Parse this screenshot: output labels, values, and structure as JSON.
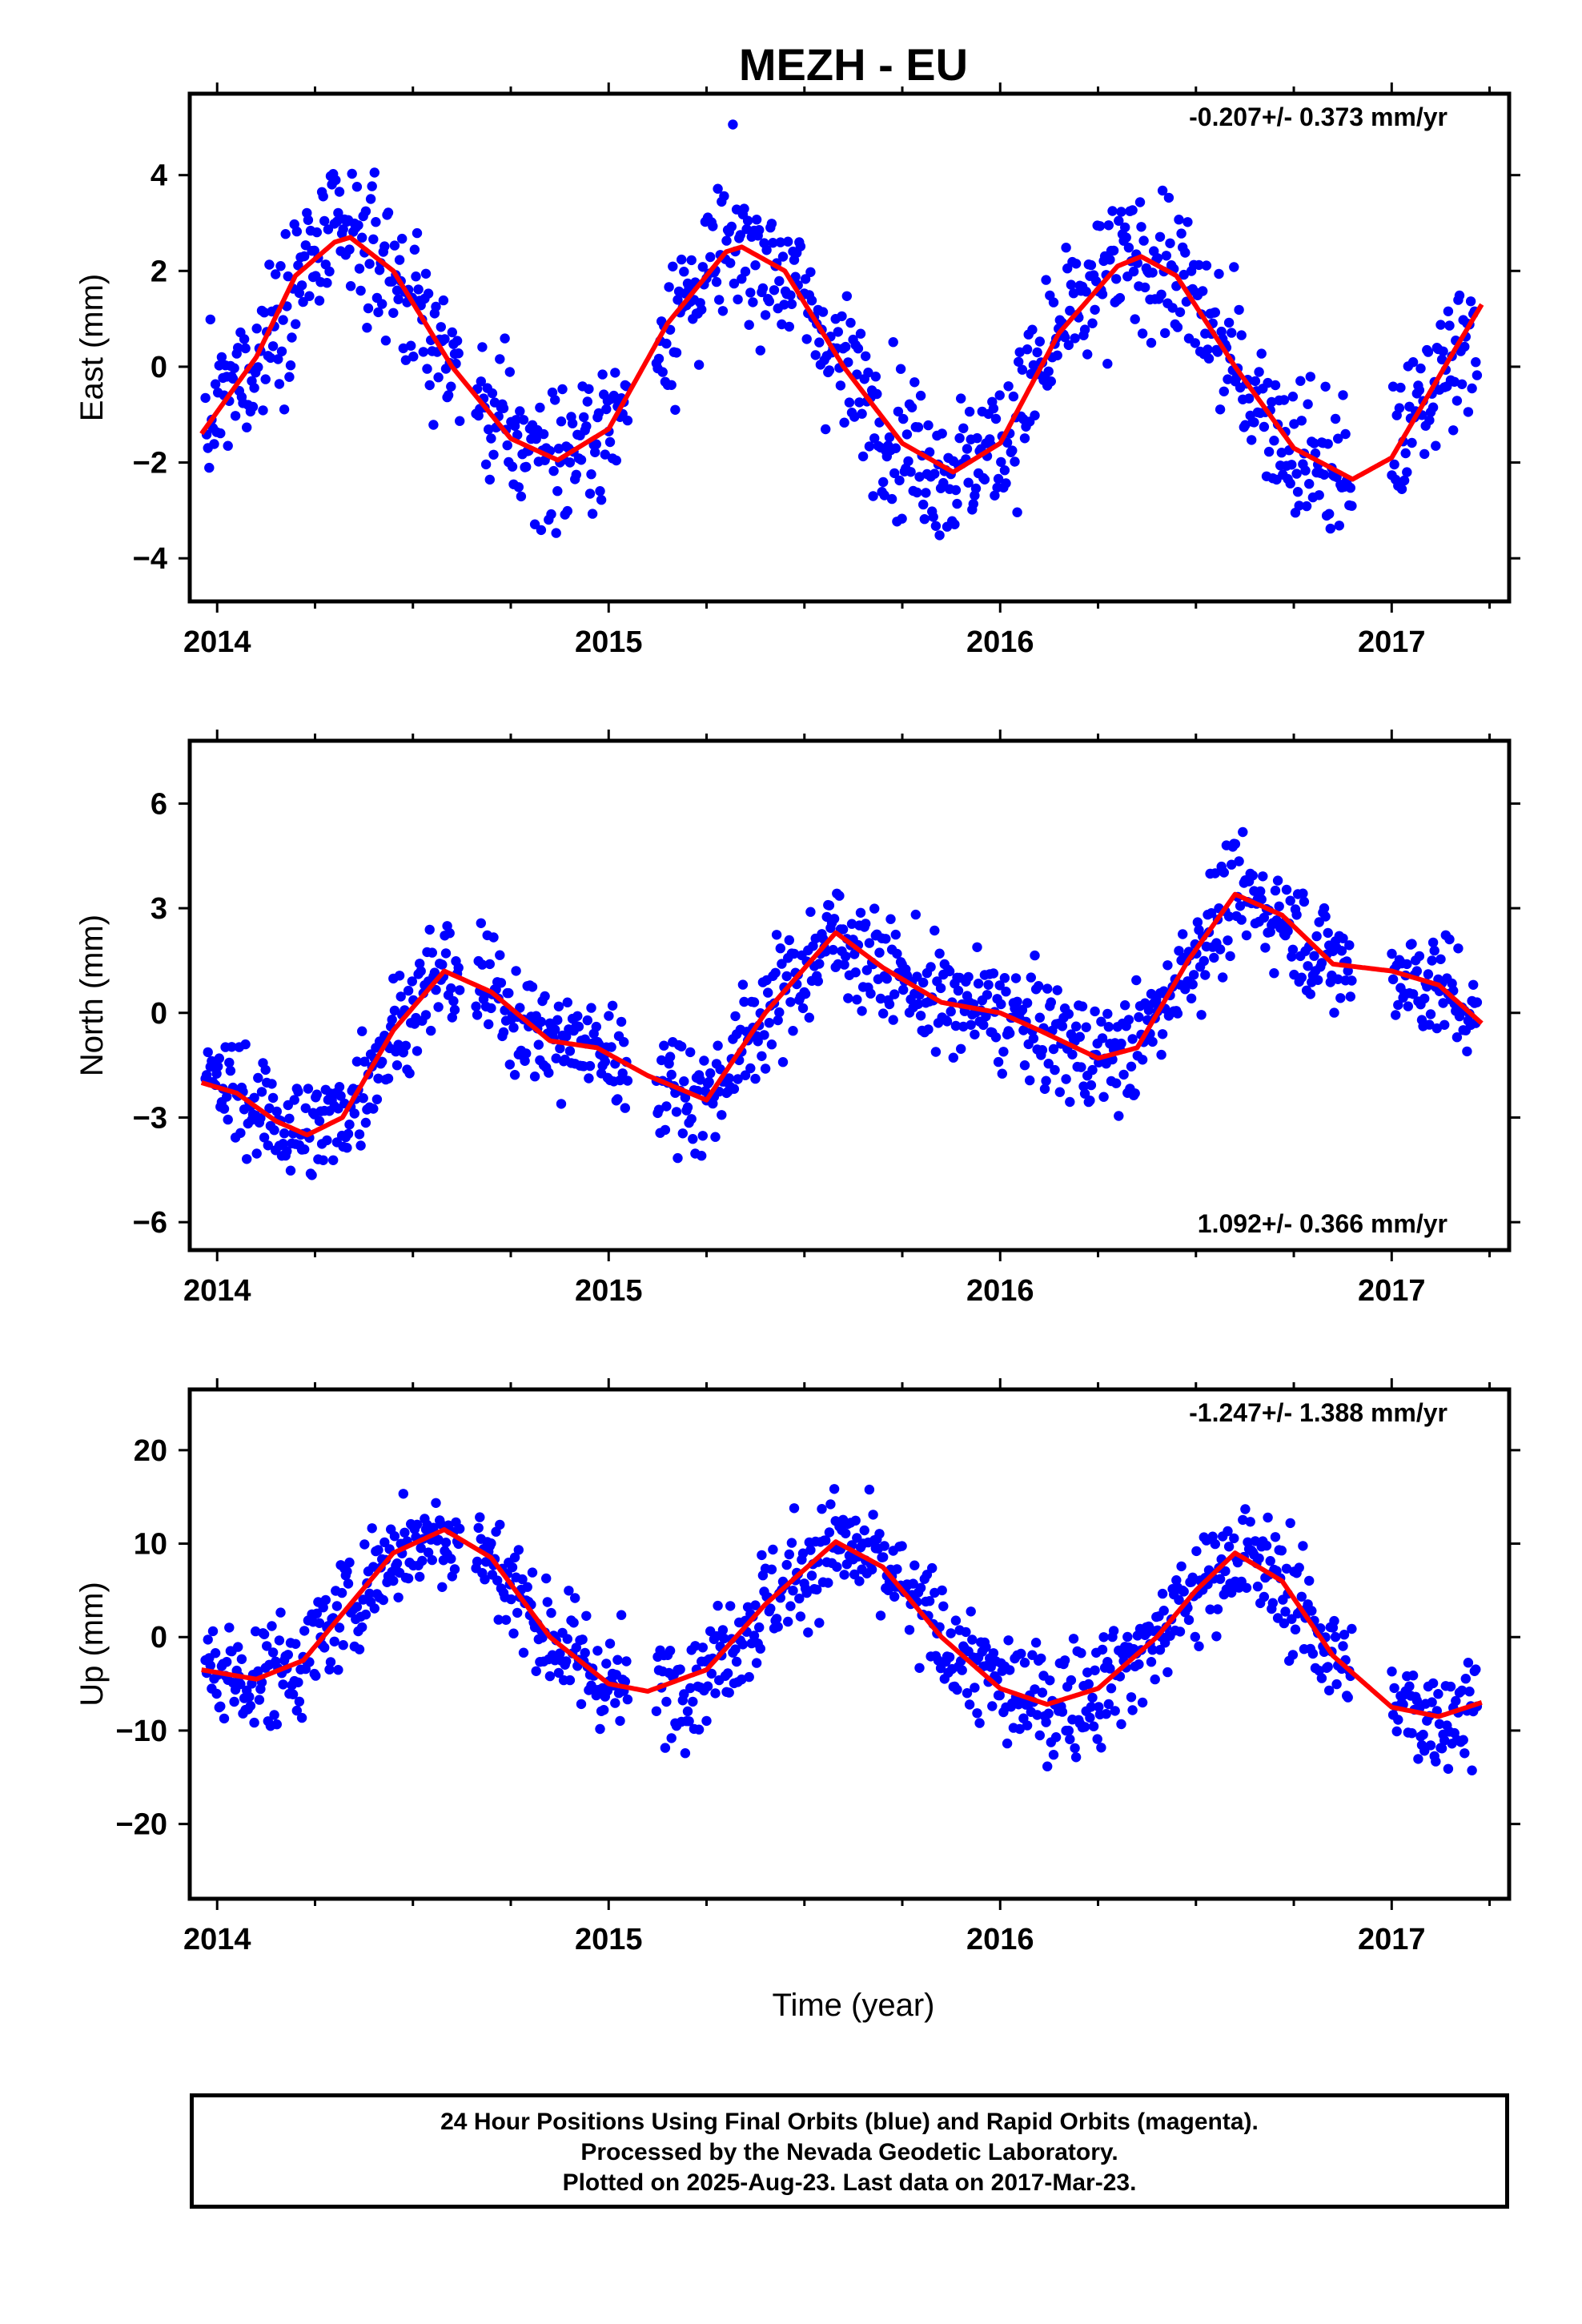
{
  "title": "MEZH - EU",
  "xlabel": "Time (year)",
  "caption": [
    "24 Hour Positions Using Final Orbits (blue) and Rapid Orbits (magenta).",
    "Processed by the Nevada Geodetic Laboratory.",
    "Plotted on 2025-Aug-23. Last data on 2017-Mar-23."
  ],
  "colors": {
    "data": "#0000ff",
    "model": "#ff0000",
    "frame": "#000000"
  },
  "chart_data": [
    {
      "type": "scatter",
      "ylabel": "East (mm)",
      "rate": "-0.207+/- 0.373 mm/yr",
      "rate_position": "top-right",
      "xlim": [
        2013.93,
        2017.3
      ],
      "ylim": [
        -4.9,
        5.7
      ],
      "x_ticks": [
        2014,
        2015,
        2016,
        2017
      ],
      "y_ticks": [
        -4,
        -2,
        0,
        2,
        4
      ],
      "model": {
        "name": "seasonal fit",
        "x": [
          2013.96,
          2014.1,
          2014.2,
          2014.3,
          2014.34,
          2014.45,
          2014.6,
          2014.75,
          2014.87,
          2015.0,
          2015.15,
          2015.3,
          2015.34,
          2015.45,
          2015.6,
          2015.75,
          2015.88,
          2016.0,
          2016.15,
          2016.3,
          2016.36,
          2016.45,
          2016.6,
          2016.75,
          2016.9,
          2017.0,
          2017.15,
          2017.23
        ],
        "y": [
          -1.4,
          0.2,
          1.9,
          2.6,
          2.7,
          2.0,
          0.0,
          -1.5,
          -1.95,
          -1.3,
          0.9,
          2.4,
          2.5,
          2.0,
          0.0,
          -1.6,
          -2.2,
          -1.6,
          0.7,
          2.1,
          2.3,
          1.9,
          0.0,
          -1.7,
          -2.35,
          -1.9,
          0.2,
          1.3
        ]
      }
    },
    {
      "type": "scatter",
      "ylabel": "North (mm)",
      "rate": "1.092+/- 0.366 mm/yr",
      "rate_position": "bottom-right",
      "xlim": [
        2013.93,
        2017.3
      ],
      "ylim": [
        -6.8,
        7.8
      ],
      "x_ticks": [
        2014,
        2015,
        2016,
        2017
      ],
      "y_ticks": [
        -6,
        -3,
        0,
        3,
        6
      ],
      "model": {
        "name": "seasonal fit",
        "x": [
          2013.96,
          2014.05,
          2014.15,
          2014.23,
          2014.32,
          2014.45,
          2014.58,
          2014.7,
          2014.85,
          2014.97,
          2015.1,
          2015.25,
          2015.4,
          2015.58,
          2015.7,
          2015.85,
          2016.0,
          2016.1,
          2016.25,
          2016.35,
          2016.48,
          2016.6,
          2016.72,
          2016.85,
          2017.0,
          2017.12,
          2017.23
        ],
        "y": [
          -2.0,
          -2.3,
          -3.1,
          -3.5,
          -3.0,
          -0.5,
          1.2,
          0.6,
          -0.8,
          -1.0,
          -1.8,
          -2.5,
          0.0,
          2.3,
          1.3,
          0.3,
          0.0,
          -0.5,
          -1.3,
          -1.0,
          1.5,
          3.4,
          2.8,
          1.4,
          1.2,
          0.8,
          -0.3
        ]
      }
    },
    {
      "type": "scatter",
      "ylabel": "Up (mm)",
      "rate": "-1.247+/- 1.388 mm/yr",
      "rate_position": "top-right",
      "xlim": [
        2013.93,
        2017.3
      ],
      "ylim": [
        -28,
        26.5
      ],
      "x_ticks": [
        2014,
        2015,
        2016,
        2017
      ],
      "y_ticks": [
        -20,
        -10,
        0,
        10,
        20
      ],
      "model": {
        "name": "seasonal fit",
        "x": [
          2013.96,
          2014.1,
          2014.22,
          2014.35,
          2014.45,
          2014.58,
          2014.7,
          2014.85,
          2015.0,
          2015.1,
          2015.25,
          2015.4,
          2015.58,
          2015.7,
          2015.85,
          2016.0,
          2016.12,
          2016.25,
          2016.4,
          2016.5,
          2016.6,
          2016.72,
          2016.85,
          2017.0,
          2017.12,
          2017.23
        ],
        "y": [
          -3.5,
          -4.5,
          -2.5,
          4.0,
          9.0,
          11.5,
          8.5,
          0.0,
          -5.0,
          -5.8,
          -3.5,
          3.5,
          10.2,
          7.5,
          0.0,
          -5.5,
          -7.2,
          -5.5,
          0.0,
          5.0,
          9.0,
          6.0,
          -2.0,
          -7.5,
          -8.5,
          -7.0
        ]
      }
    }
  ]
}
